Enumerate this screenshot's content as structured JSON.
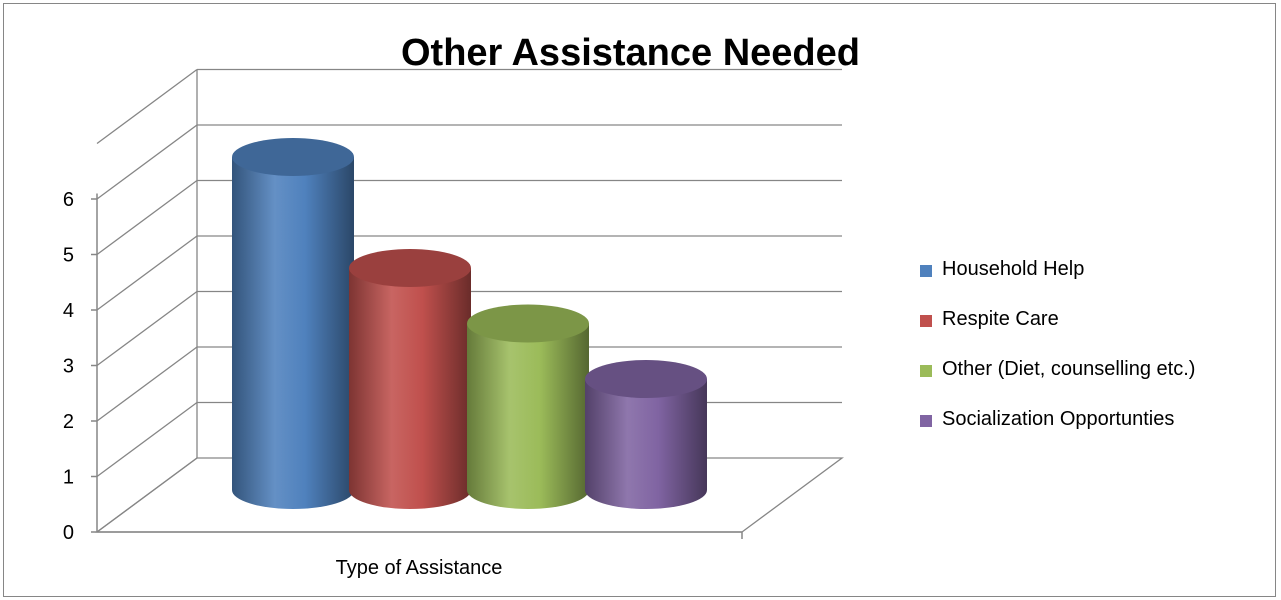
{
  "chart_data": {
    "type": "bar",
    "title": "Other Assistance Needed",
    "xlabel": "Type of Assistance",
    "ylabel": "",
    "ylim": [
      0,
      6
    ],
    "y_ticks": [
      "0",
      "1",
      "2",
      "3",
      "4",
      "5",
      "6"
    ],
    "categories": [
      "Type of Assistance"
    ],
    "series": [
      {
        "name": "Household Help",
        "values": [
          6
        ],
        "color": "#4f81bd"
      },
      {
        "name": "Respite Care",
        "values": [
          4
        ],
        "color": "#c0504d"
      },
      {
        "name": "Other (Diet, counselling etc.)",
        "values": [
          3
        ],
        "color": "#9bbb59"
      },
      {
        "name": "Socialization Opportunties",
        "values": [
          2
        ],
        "color": "#8064a2"
      }
    ],
    "bar_shape": "cylinder-3d",
    "grid": true,
    "legend_position": "right"
  }
}
